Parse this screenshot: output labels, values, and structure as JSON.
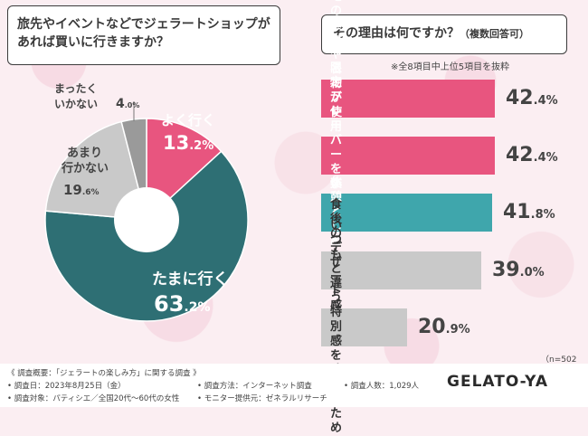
{
  "question1": {
    "line1": "旅先やイベントなどでジェラートショップが",
    "line2": "あれば買いに行きますか？"
  },
  "question2": {
    "main": "その理由は何ですか？",
    "sub": "（複数回答可）"
  },
  "note": "※全8項目中上位5項目を抜粋",
  "colors": {
    "pink": "#e8557f",
    "teal": "#2e6f74",
    "lightgray": "#c9c9c9",
    "darkgray": "#9a9a9a",
    "cyan": "#3fa6ac"
  },
  "chart_data": [
    {
      "type": "pie",
      "series": [
        {
          "name": "よく行く",
          "value": 13.2,
          "color": "#e8557f"
        },
        {
          "name": "たまに行く",
          "value": 63.2,
          "color": "#2e6f74"
        },
        {
          "name": "あまり行かない",
          "value": 19.6,
          "color": "#c9c9c9"
        },
        {
          "name": "まったくいかない",
          "value": 4.0,
          "color": "#9a9a9a"
        }
      ],
      "labels": [
        {
          "line1": "よく行く",
          "int": "13",
          "dec": ".2%"
        },
        {
          "line1": "たまに行く",
          "int": "63",
          "dec": ".2%"
        },
        {
          "line1": "あまり",
          "line2": "行かない",
          "int": "19",
          "dec": ".6%"
        },
        {
          "line1": "まったく",
          "line2": "いかない",
          "int": "4",
          "dec": ".0%"
        }
      ]
    },
    {
      "type": "bar",
      "categories": [
        "ご当地の素材や名物が\n使用されているため",
        "限定フレーバーを\n楽しむため",
        "休憩として",
        "食後のデザート感覚で",
        "いつもと違う\n特別感を味わうため"
      ],
      "values": [
        42.4,
        42.4,
        41.8,
        39.0,
        20.9
      ],
      "value_labels": [
        {
          "int": "42",
          "dec": ".4%"
        },
        {
          "int": "42",
          "dec": ".4%"
        },
        {
          "int": "41",
          "dec": ".8%"
        },
        {
          "int": "39",
          "dec": ".0%"
        },
        {
          "int": "20",
          "dec": ".9%"
        }
      ],
      "colors": [
        "#e8557f",
        "#e8557f",
        "#3fa6ac",
        "#c9c9c9",
        "#c9c9c9"
      ],
      "n": "（n=502人）"
    }
  ],
  "footer": {
    "overview": "《 調査概要：「ジェラートの楽しみ方」に関する調査 》",
    "date": "• 調査日：2023年8月25日（金）",
    "target": "• 調査対象：パティシエ／全国20代～60代の女性",
    "method": "• 調査方法：インターネット調査",
    "monitor": "• モニター提供元：ゼネラルリサーチ",
    "count": "• 調査人数：1,029人",
    "logo": "GELATO-YA"
  }
}
